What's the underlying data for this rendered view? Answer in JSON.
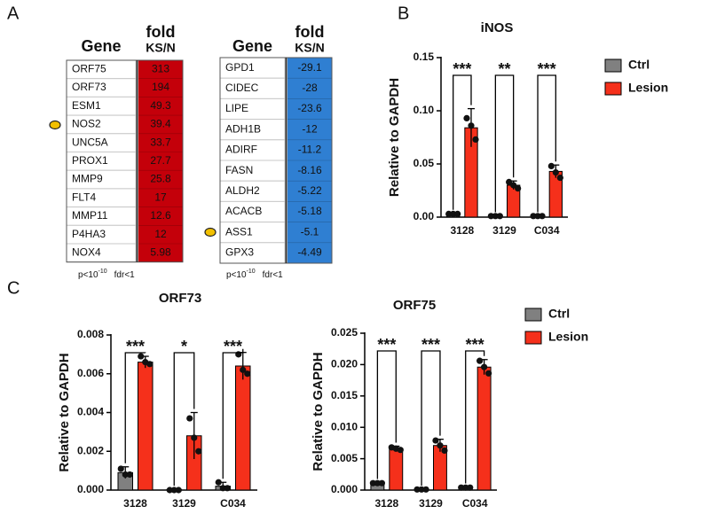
{
  "panel_labels": [
    "A",
    "B",
    "C"
  ],
  "tables": [
    {
      "headers": [
        "Gene",
        "fold",
        "KS/N"
      ],
      "color": "#c4000a",
      "rows": [
        [
          "ORF75",
          313
        ],
        [
          "ORF73",
          194
        ],
        [
          "ESM1",
          49.3
        ],
        [
          "NOS2",
          39.4
        ],
        [
          "UNC5A",
          33.7
        ],
        [
          "PROX1",
          27.7
        ],
        [
          "MMP9",
          25.8
        ],
        [
          "FLT4",
          17
        ],
        [
          "MMP11",
          12.6
        ],
        [
          "P4HA3",
          12
        ],
        [
          "NOX4",
          5.98
        ]
      ],
      "footnote": {
        "p": "p<10",
        "exponent": "-10",
        "fdr": "fdr<1"
      }
    },
    {
      "headers": [
        "Gene",
        "fold",
        "KS/N"
      ],
      "color": "#2f7fd2",
      "rows": [
        [
          "GPD1",
          -29.1
        ],
        [
          "CIDEC",
          -28
        ],
        [
          "LIPE",
          -23.6
        ],
        [
          "ADH1B",
          -12
        ],
        [
          "ADIRF",
          -11.2
        ],
        [
          "FASN",
          -8.16
        ],
        [
          "ALDH2",
          -5.22
        ],
        [
          "ACACB",
          -5.18
        ],
        [
          "ASS1",
          -5.1
        ],
        [
          "GPX3",
          -4.49
        ]
      ],
      "footnote": {
        "p": "p<10",
        "exponent": "-10",
        "fdr": "fdr<1"
      }
    }
  ],
  "chart_data": [
    {
      "type": "bar",
      "title": "iNOS",
      "ylabel": "Relative to GAPDH",
      "categories": [
        "3128",
        "3129",
        "C034"
      ],
      "series": [
        {
          "name": "Ctrl",
          "color": "#808080",
          "values": [
            0.003,
            0.001,
            0.001
          ],
          "errors": [
            0.0005,
            0.0002,
            0.0002
          ],
          "points": [
            [
              0.003,
              0.003,
              0.003
            ],
            [
              0.001,
              0.001,
              0.001
            ],
            [
              0.001,
              0.001,
              0.001
            ]
          ]
        },
        {
          "name": "Lesion",
          "color": "#f5301b",
          "values": [
            0.084,
            0.03,
            0.043
          ],
          "errors": [
            0.018,
            0.004,
            0.006
          ],
          "points": [
            [
              0.093,
              0.086,
              0.073
            ],
            [
              0.033,
              0.03,
              0.027
            ],
            [
              0.048,
              0.042,
              0.037
            ]
          ]
        }
      ],
      "significance": [
        "***",
        "**",
        "***"
      ],
      "ylim": [
        0,
        0.15
      ],
      "yticks": [
        {
          "value": 0,
          "label": "0.00"
        },
        0.05,
        {
          "value": 0.1,
          "label": "0.10"
        },
        0.15
      ],
      "legend": "right"
    },
    {
      "type": "bar",
      "title": "ORF73",
      "ylabel": "Relative to GAPDH",
      "categories": [
        "3128",
        "3129",
        "C034"
      ],
      "series": [
        {
          "name": "Ctrl",
          "color": "#808080",
          "values": [
            0.0009,
            3e-05,
            0.0002
          ],
          "errors": [
            0.0003,
            1e-05,
            0.0002
          ],
          "points": [
            [
              0.0011,
              0.0008,
              0.0008
            ],
            [
              0,
              0,
              0
            ],
            [
              0.0004,
              0.0001,
              0.0001
            ]
          ]
        },
        {
          "name": "Lesion",
          "color": "#f5301b",
          "values": [
            0.0066,
            0.0028,
            0.0064
          ],
          "errors": [
            0.0003,
            0.0012,
            0.0007
          ],
          "points": [
            [
              0.0069,
              0.0066,
              0.0065
            ],
            [
              0.0037,
              0.0027,
              0.002
            ],
            [
              0.007,
              0.0062,
              0.006
            ]
          ]
        }
      ],
      "significance": [
        "***",
        "*",
        "***"
      ],
      "ylim": [
        0,
        0.008
      ],
      "yticks": [
        {
          "value": 0,
          "label": "0.000"
        },
        0.002,
        0.004,
        0.006,
        0.008
      ]
    },
    {
      "type": "bar",
      "title": "ORF75",
      "ylabel": "Relative to GAPDH",
      "categories": [
        "3128",
        "3129",
        "C034"
      ],
      "series": [
        {
          "name": "Ctrl",
          "color": "#808080",
          "values": [
            0.0011,
            0.0001,
            0.0004
          ],
          "errors": [
            0.0001,
            5e-05,
            0.0001
          ],
          "points": [
            [
              0.0011,
              0.0011,
              0.0011
            ],
            [
              0.0001,
              0.0001,
              0.0001
            ],
            [
              0.0004,
              0.0004,
              0.0004
            ]
          ]
        },
        {
          "name": "Lesion",
          "color": "#f5301b",
          "values": [
            0.0066,
            0.0071,
            0.0196
          ],
          "errors": [
            0.0004,
            0.001,
            0.0012
          ],
          "points": [
            [
              0.0068,
              0.0066,
              0.0064
            ],
            [
              0.0079,
              0.0071,
              0.0063
            ],
            [
              0.0206,
              0.0196,
              0.0186
            ]
          ]
        }
      ],
      "significance": [
        "***",
        "***",
        "***"
      ],
      "ylim": [
        0,
        0.025
      ],
      "yticks": [
        {
          "value": 0,
          "label": "0.000"
        },
        0.005,
        {
          "value": 0.01,
          "label": "0.010"
        },
        0.015,
        {
          "value": 0.02,
          "label": "0.020"
        },
        0.025
      ],
      "legend": "right"
    }
  ]
}
